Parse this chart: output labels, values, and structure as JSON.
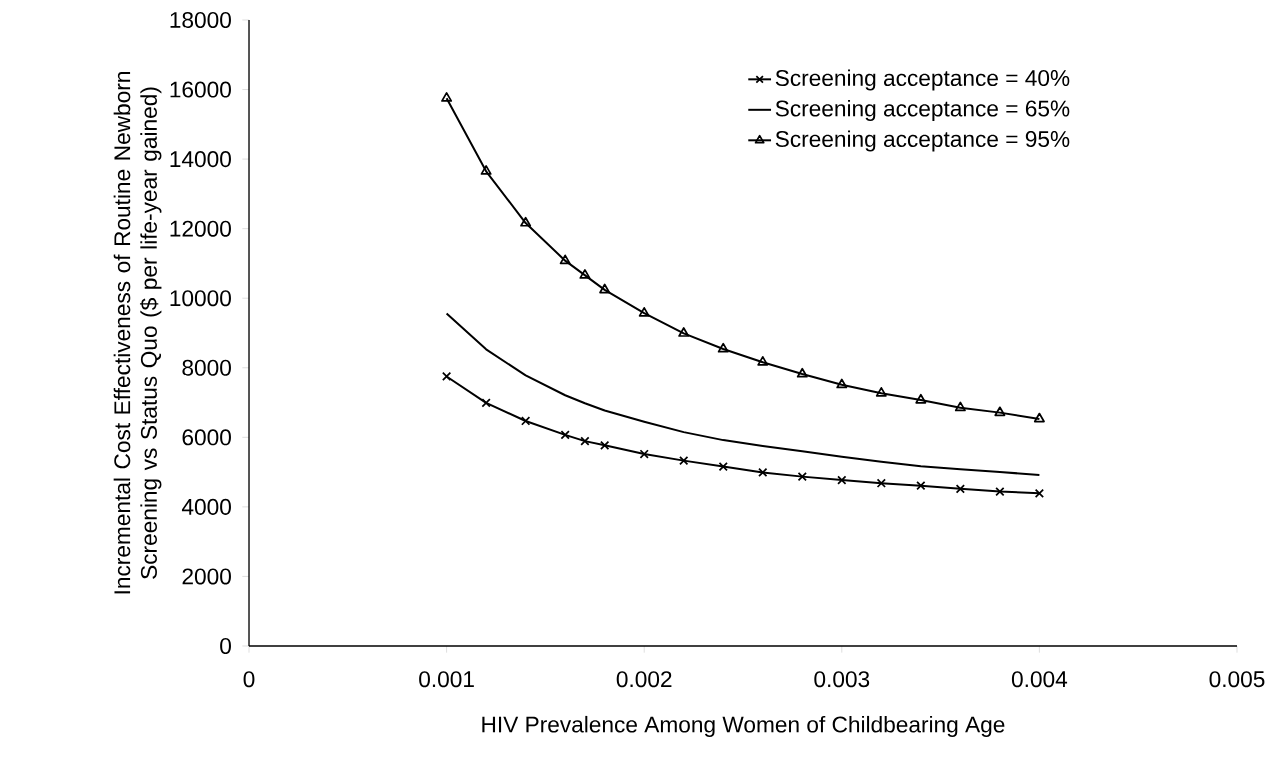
{
  "chart_data": {
    "type": "line",
    "xlabel": "HIV Prevalence Among Women of Childbearing Age",
    "ylabel": "Incremental Cost Effectiveness of Routine Newborn Screening vs Status Quo ($ per life-year gained)",
    "x": [
      0.001,
      0.0012,
      0.0014,
      0.0016,
      0.0017,
      0.0018,
      0.002,
      0.0022,
      0.0024,
      0.0026,
      0.0028,
      0.003,
      0.0032,
      0.0034,
      0.0036,
      0.0038,
      0.004
    ],
    "series": [
      {
        "name": "Screening acceptance = 40%",
        "color": "#000000",
        "marker": "cross",
        "values": [
          7750,
          6990,
          6470,
          6070,
          5890,
          5770,
          5520,
          5330,
          5160,
          4990,
          4870,
          4770,
          4680,
          4610,
          4520,
          4440,
          4390
        ]
      },
      {
        "name": "Screening acceptance = 65%",
        "color": "#000000",
        "marker": "none",
        "values": [
          9560,
          8530,
          7780,
          7210,
          6980,
          6770,
          6450,
          6150,
          5920,
          5750,
          5600,
          5440,
          5300,
          5170,
          5080,
          5000,
          4920
        ]
      },
      {
        "name": "Screening acceptance = 95%",
        "color": "#000000",
        "marker": "triangle",
        "values": [
          15750,
          13650,
          12160,
          11080,
          10660,
          10240,
          9570,
          8990,
          8540,
          8160,
          7820,
          7510,
          7270,
          7070,
          6850,
          6710,
          6530
        ]
      }
    ],
    "xlim": [
      0,
      0.005
    ],
    "ylim": [
      0,
      18000
    ],
    "xticks": [
      0,
      0.001,
      0.002,
      0.003,
      0.004,
      0.005
    ],
    "yticks": [
      0,
      2000,
      4000,
      6000,
      8000,
      10000,
      12000,
      14000,
      16000,
      18000
    ],
    "grid": false,
    "legend": "top right",
    "line_style": "solid"
  }
}
